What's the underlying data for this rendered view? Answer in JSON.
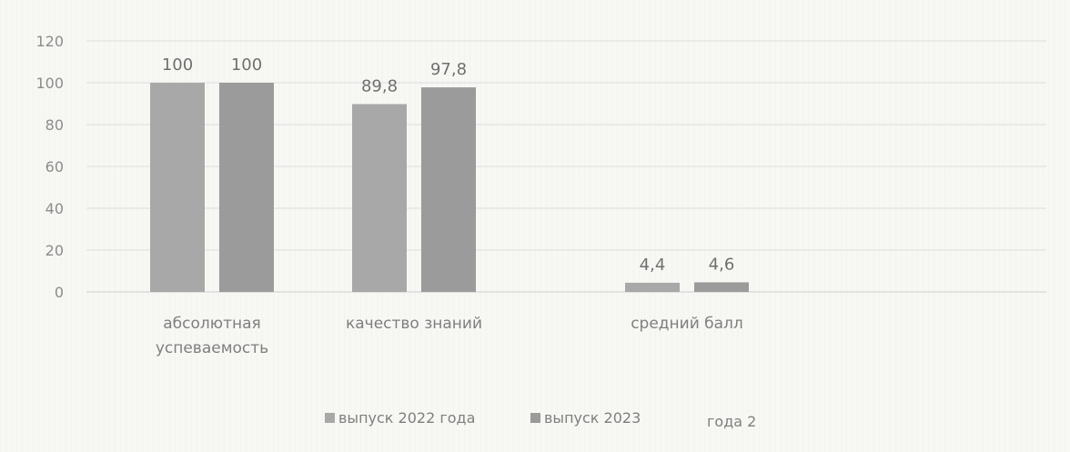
{
  "chart_data": {
    "type": "bar",
    "categories": [
      "абсолютная успеваемость",
      "качество знаний",
      "средний балл"
    ],
    "category_label_lines": [
      [
        "абсолютная",
        "успеваемость"
      ],
      [
        "качество знаний"
      ],
      [
        "средний балл"
      ]
    ],
    "series": [
      {
        "name": "выпуск 2022 года",
        "values": [
          100,
          89.8,
          4.4
        ],
        "data_labels": [
          "100",
          "89,8",
          "4,4"
        ],
        "color": "#a8a8a8"
      },
      {
        "name": "выпуск 2023",
        "values": [
          100,
          97.8,
          4.6
        ],
        "data_labels": [
          "100",
          "97,8",
          "4,6"
        ],
        "color": "#9b9b9b"
      }
    ],
    "legend_extra": "года 2",
    "ylim": [
      0,
      120
    ],
    "yticks": [
      0,
      20,
      40,
      60,
      80,
      100,
      120
    ],
    "grid": true,
    "legend_position": "bottom"
  }
}
